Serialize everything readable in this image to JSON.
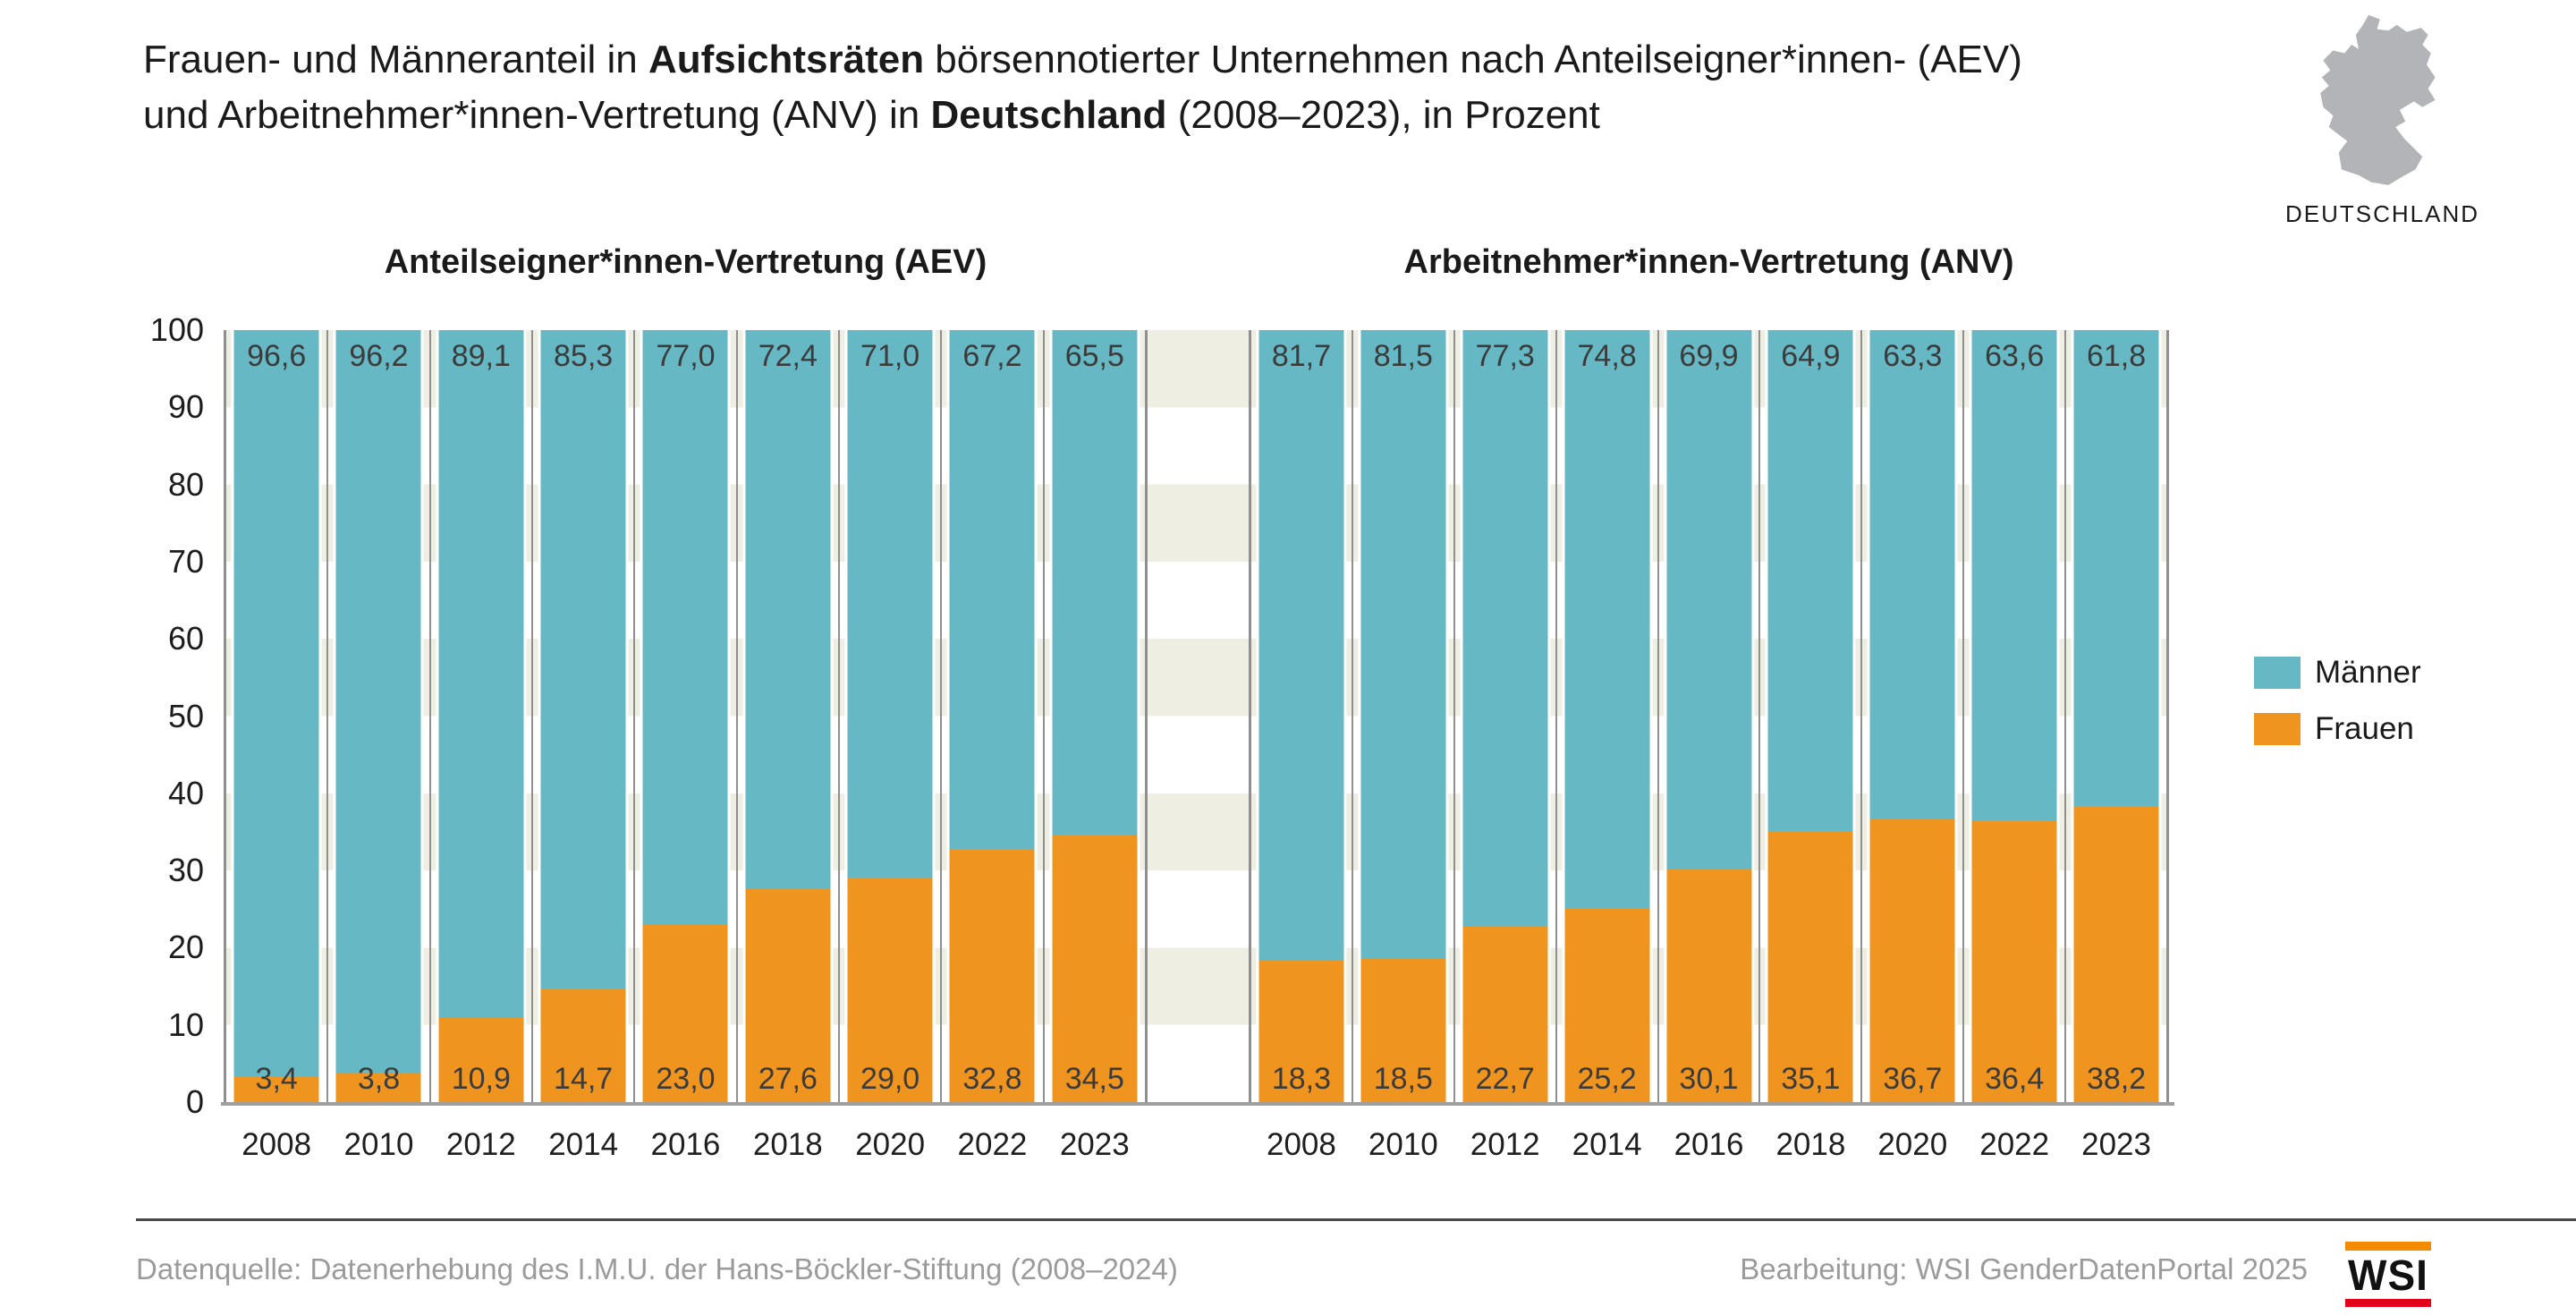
{
  "title": {
    "l1a": "Frauen- und Männeranteil in ",
    "l1b": "Aufsichtsräten",
    "l1c": " börsennotierter Unternehmen nach Anteilseigner*innen- (AEV)",
    "l2a": "und Arbeitnehmer*innen-Vertretung (ANV) in ",
    "l2b": "Deutschland",
    "l2c": " (2008–2023), in Prozent"
  },
  "header": {
    "region_label": "DEUTSCHLAND",
    "map_icon": "germany-map-silhouette"
  },
  "chart_data": {
    "type": "bar",
    "stacked": true,
    "unit": "percent",
    "ylim": [
      0,
      100
    ],
    "yticks": [
      100,
      90,
      80,
      70,
      60,
      50,
      40,
      30,
      20,
      10,
      0
    ],
    "grid": "horizontal-stripes-every-10",
    "legend_position": "right",
    "legend": [
      {
        "name": "Männer",
        "color": "#66b8c4"
      },
      {
        "name": "Frauen",
        "color": "#f09420"
      }
    ],
    "panels": [
      {
        "title": "Anteilseigner*innen-Vertretung (AEV)",
        "categories": [
          "2008",
          "2010",
          "2012",
          "2014",
          "2016",
          "2018",
          "2020",
          "2022",
          "2023"
        ],
        "series": [
          {
            "name": "Männer",
            "values": [
              96.6,
              96.2,
              89.1,
              85.3,
              77.0,
              72.4,
              71.0,
              67.2,
              65.5
            ],
            "labels": [
              "96,6",
              "96,2",
              "89,1",
              "85,3",
              "77,0",
              "72,4",
              "71,0",
              "67,2",
              "65,5"
            ]
          },
          {
            "name": "Frauen",
            "values": [
              3.4,
              3.8,
              10.9,
              14.7,
              23.0,
              27.6,
              29.0,
              32.8,
              34.5
            ],
            "labels": [
              "3,4",
              "3,8",
              "10,9",
              "14,7",
              "23,0",
              "27,6",
              "29,0",
              "32,8",
              "34,5"
            ]
          }
        ]
      },
      {
        "title": "Arbeitnehmer*innen-Vertretung (ANV)",
        "categories": [
          "2008",
          "2010",
          "2012",
          "2014",
          "2016",
          "2018",
          "2020",
          "2022",
          "2023"
        ],
        "series": [
          {
            "name": "Männer",
            "values": [
              81.7,
              81.5,
              77.3,
              74.8,
              69.9,
              64.9,
              63.3,
              63.6,
              61.8
            ],
            "labels": [
              "81,7",
              "81,5",
              "77,3",
              "74,8",
              "69,9",
              "64,9",
              "63,3",
              "63,6",
              "61,8"
            ]
          },
          {
            "name": "Frauen",
            "values": [
              18.3,
              18.5,
              22.7,
              25.2,
              30.1,
              35.1,
              36.7,
              36.4,
              38.2
            ],
            "labels": [
              "18,3",
              "18,5",
              "22,7",
              "25,2",
              "30,1",
              "35,1",
              "36,7",
              "36,4",
              "38,2"
            ]
          }
        ]
      }
    ]
  },
  "footer": {
    "source": "Datenquelle: Datenerhebung des I.M.U. der Hans-Böckler-Stiftung (2008–2024)",
    "editor": "Bearbeitung: WSI GenderDatenPortal 2025",
    "logo_text": "WSI"
  },
  "colors": {
    "men": "#66b8c4",
    "women": "#f09420",
    "stripe": "#efeee3",
    "grid": "#8f8f8f",
    "axis": "#9e9e9e",
    "label_text": "#3b3b3b",
    "map_gray": "#b2b4b7",
    "muted_text": "#9b9b9b",
    "divider": "#4a4a4a",
    "logo_orange": "#f28b00",
    "logo_red": "#e2001a"
  }
}
